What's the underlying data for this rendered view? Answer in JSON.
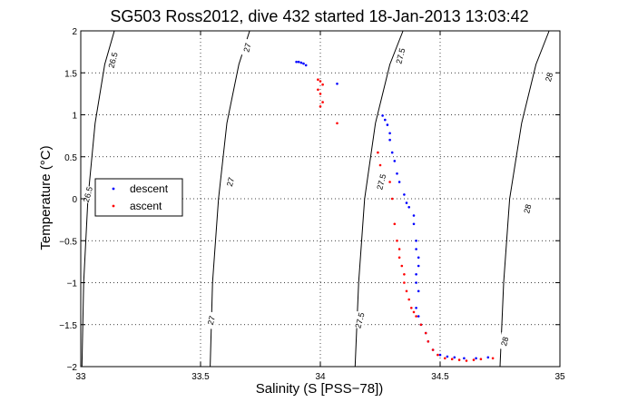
{
  "chart_data": {
    "type": "scatter",
    "title": "SG503 Ross2012, dive 432 started 18-Jan-2013 13:03:42",
    "xlabel": "Salinity (S [PSS−78])",
    "ylabel": "Temperature (°C)",
    "xlim": [
      33,
      35
    ],
    "ylim": [
      -2,
      2
    ],
    "x_ticks": [
      33,
      33.5,
      34,
      34.5,
      35
    ],
    "x_tick_labels": [
      "33",
      "33.5",
      "34",
      "34.5",
      "35"
    ],
    "y_ticks": [
      -2,
      -1.5,
      -1,
      -0.5,
      0,
      0.5,
      1,
      1.5,
      2
    ],
    "y_tick_labels": [
      "−2",
      "−1.5",
      "−1",
      "−0.5",
      "0",
      "0.5",
      "1",
      "1.5",
      "2"
    ],
    "grid": true,
    "legend_position": "left",
    "contours": [
      {
        "label": "26.5",
        "points": [
          [
            33.005,
            -2.0
          ],
          [
            33.012,
            -1.0
          ],
          [
            33.03,
            0.0
          ],
          [
            33.06,
            0.9
          ],
          [
            33.1,
            1.6
          ],
          [
            33.14,
            2.0
          ]
        ],
        "label_positions": [
          [
            33.03,
            0.05
          ],
          [
            33.135,
            1.65
          ]
        ]
      },
      {
        "label": "27",
        "points": [
          [
            33.54,
            -2.0
          ],
          [
            33.55,
            -1.0
          ],
          [
            33.575,
            0.0
          ],
          [
            33.61,
            0.9
          ],
          [
            33.66,
            1.6
          ],
          [
            33.705,
            2.0
          ]
        ],
        "label_positions": [
          [
            33.545,
            -1.45
          ],
          [
            33.625,
            0.2
          ],
          [
            33.695,
            1.8
          ]
        ]
      },
      {
        "label": "27.5",
        "points": [
          [
            34.145,
            -2.0
          ],
          [
            34.16,
            -1.0
          ],
          [
            34.185,
            0.0
          ],
          [
            34.23,
            0.9
          ],
          [
            34.29,
            1.6
          ],
          [
            34.345,
            2.0
          ]
        ],
        "label_positions": [
          [
            34.165,
            -1.45
          ],
          [
            34.255,
            0.2
          ],
          [
            34.335,
            1.7
          ]
        ]
      },
      {
        "label": "28",
        "points": [
          [
            34.75,
            -2.0
          ],
          [
            34.765,
            -1.0
          ],
          [
            34.79,
            0.0
          ],
          [
            34.84,
            0.9
          ],
          [
            34.9,
            1.6
          ],
          [
            34.955,
            2.0
          ]
        ],
        "label_positions": [
          [
            34.77,
            -1.7
          ],
          [
            34.865,
            -0.12
          ],
          [
            34.955,
            1.45
          ]
        ]
      }
    ],
    "series": [
      {
        "name": "descent",
        "color": "#0000ff",
        "points": [
          [
            33.9,
            1.63
          ],
          [
            33.91,
            1.63
          ],
          [
            33.92,
            1.62
          ],
          [
            33.93,
            1.61
          ],
          [
            33.94,
            1.59
          ],
          [
            34.07,
            1.37
          ],
          [
            34.26,
            0.99
          ],
          [
            34.27,
            0.94
          ],
          [
            34.28,
            0.88
          ],
          [
            34.29,
            0.78
          ],
          [
            34.29,
            0.7
          ],
          [
            34.3,
            0.55
          ],
          [
            34.31,
            0.45
          ],
          [
            34.32,
            0.3
          ],
          [
            34.33,
            0.2
          ],
          [
            34.35,
            0.05
          ],
          [
            34.37,
            -0.1
          ],
          [
            34.36,
            -0.05
          ],
          [
            34.39,
            -0.2
          ],
          [
            34.39,
            -0.3
          ],
          [
            34.4,
            -0.5
          ],
          [
            34.4,
            -0.6
          ],
          [
            34.41,
            -0.7
          ],
          [
            34.41,
            -0.8
          ],
          [
            34.4,
            -0.9
          ],
          [
            34.4,
            -1.0
          ],
          [
            34.41,
            -1.1
          ],
          [
            34.4,
            -1.3
          ],
          [
            34.41,
            -1.4
          ],
          [
            34.42,
            -1.5
          ],
          [
            34.44,
            -1.6
          ],
          [
            34.45,
            -1.7
          ],
          [
            34.47,
            -1.8
          ],
          [
            34.5,
            -1.86
          ],
          [
            34.53,
            -1.88
          ],
          [
            34.56,
            -1.89
          ],
          [
            34.6,
            -1.9
          ],
          [
            34.65,
            -1.9
          ],
          [
            34.7,
            -1.89
          ]
        ]
      },
      {
        "name": "ascent",
        "color": "#ff0000",
        "points": [
          [
            33.99,
            1.42
          ],
          [
            34.0,
            1.4
          ],
          [
            34.01,
            1.36
          ],
          [
            33.99,
            1.3
          ],
          [
            34.0,
            1.25
          ],
          [
            34.01,
            1.15
          ],
          [
            34.0,
            1.1
          ],
          [
            34.07,
            0.9
          ],
          [
            34.24,
            0.55
          ],
          [
            34.25,
            0.4
          ],
          [
            34.29,
            0.2
          ],
          [
            34.3,
            0.0
          ],
          [
            34.31,
            -0.3
          ],
          [
            34.32,
            -0.5
          ],
          [
            34.33,
            -0.6
          ],
          [
            34.33,
            -0.7
          ],
          [
            34.34,
            -0.8
          ],
          [
            34.35,
            -0.9
          ],
          [
            34.35,
            -1.0
          ],
          [
            34.36,
            -1.1
          ],
          [
            34.37,
            -1.2
          ],
          [
            34.38,
            -1.3
          ],
          [
            34.39,
            -1.35
          ],
          [
            34.4,
            -1.4
          ],
          [
            34.42,
            -1.5
          ],
          [
            34.44,
            -1.6
          ],
          [
            34.45,
            -1.7
          ],
          [
            34.47,
            -1.8
          ],
          [
            34.49,
            -1.86
          ],
          [
            34.52,
            -1.9
          ],
          [
            34.55,
            -1.91
          ],
          [
            34.58,
            -1.92
          ],
          [
            34.61,
            -1.93
          ],
          [
            34.64,
            -1.92
          ],
          [
            34.67,
            -1.91
          ],
          [
            34.72,
            -1.9
          ]
        ]
      }
    ]
  }
}
